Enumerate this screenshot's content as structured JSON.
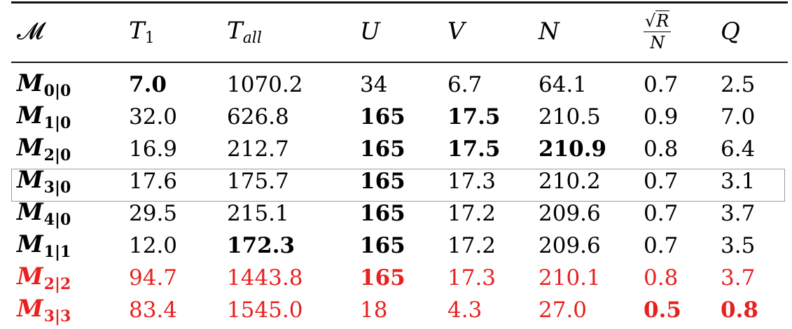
{
  "table": {
    "headers": [
      {
        "main": "𝓜",
        "sub": ""
      },
      {
        "main": "T",
        "sub": "1"
      },
      {
        "main": "T",
        "sub": "all"
      },
      {
        "main": "U",
        "sub": ""
      },
      {
        "main": "V",
        "sub": ""
      },
      {
        "main": "N",
        "sub": ""
      },
      {
        "main": "√R/N",
        "sub": "",
        "numerator": "R",
        "denominator": "N"
      },
      {
        "main": "Q",
        "sub": ""
      }
    ],
    "rows": [
      {
        "model": {
          "base": "M",
          "sub": "0|0"
        },
        "T1": "7.0",
        "Tall": "1070.2",
        "U": "34",
        "V": "6.7",
        "N": "64.1",
        "sqrtRN": "0.7",
        "Q": "2.5"
      },
      {
        "model": {
          "base": "M",
          "sub": "1|0"
        },
        "T1": "32.0",
        "Tall": "626.8",
        "U": "165",
        "V": "17.5",
        "N": "210.5",
        "sqrtRN": "0.9",
        "Q": "7.0"
      },
      {
        "model": {
          "base": "M",
          "sub": "2|0"
        },
        "T1": "16.9",
        "Tall": "212.7",
        "U": "165",
        "V": "17.5",
        "N": "210.9",
        "sqrtRN": "0.8",
        "Q": "6.4"
      },
      {
        "model": {
          "base": "M",
          "sub": "3|0"
        },
        "T1": "17.6",
        "Tall": "175.7",
        "U": "165",
        "V": "17.3",
        "N": "210.2",
        "sqrtRN": "0.7",
        "Q": "3.1"
      },
      {
        "model": {
          "base": "M",
          "sub": "4|0"
        },
        "T1": "29.5",
        "Tall": "215.1",
        "U": "165",
        "V": "17.2",
        "N": "209.6",
        "sqrtRN": "0.7",
        "Q": "3.7"
      },
      {
        "model": {
          "base": "M",
          "sub": "1|1"
        },
        "T1": "12.0",
        "Tall": "172.3",
        "U": "165",
        "V": "17.2",
        "N": "209.6",
        "sqrtRN": "0.7",
        "Q": "3.5"
      },
      {
        "model": {
          "base": "M",
          "sub": "2|2"
        },
        "T1": "94.7",
        "Tall": "1443.8",
        "U": "165",
        "V": "17.3",
        "N": "210.1",
        "sqrtRN": "0.8",
        "Q": "3.7"
      },
      {
        "model": {
          "base": "M",
          "sub": "3|3"
        },
        "T1": "83.4",
        "Tall": "1545.0",
        "U": "18",
        "V": "4.3",
        "N": "27.0",
        "sqrtRN": "0.5",
        "Q": "0.8"
      }
    ],
    "highlight_color": "#e8201e"
  }
}
